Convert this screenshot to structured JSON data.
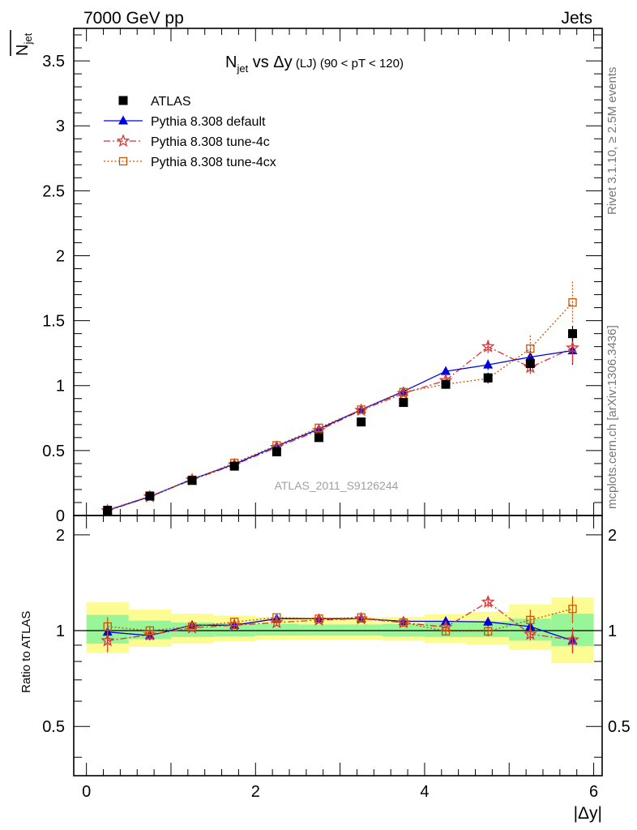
{
  "header": {
    "left": "7000 GeV pp",
    "right": "Jets"
  },
  "side_labels": {
    "rivet": "Rivet 3.1.10, ≥ 2.5M events",
    "mcplots": "mcplots.cern.ch [arXiv:1306.3436]"
  },
  "chart_data": {
    "type": "scatter",
    "title_main": "N",
    "title_sub": "jet",
    "title_rest": " vs Δy",
    "title_small": " (LJ) (90 < pT < 120)",
    "ylabel_main": "N",
    "ylabel_sub": "jet",
    "xlabel": "|Δy|",
    "ratio_ylabel": "Ratio to ATLAS",
    "watermark": "ATLAS_2011_S9126244",
    "xlim": [
      -0.15,
      6.1
    ],
    "ylim": [
      0,
      3.75
    ],
    "ratio_ylim": [
      0.35,
      2.3
    ],
    "x_ticks": [
      "0",
      "2",
      "4",
      "6"
    ],
    "y_ticks": [
      "0",
      "0.5",
      "1",
      "1.5",
      "2",
      "2.5",
      "3",
      "3.5"
    ],
    "ratio_ticks": [
      "0.5",
      "1",
      "2"
    ],
    "bins": [
      [
        0,
        0.5
      ],
      [
        0.5,
        1
      ],
      [
        1,
        1.5
      ],
      [
        1.5,
        2
      ],
      [
        2,
        2.5
      ],
      [
        2.5,
        3
      ],
      [
        3,
        3.5
      ],
      [
        3.5,
        4
      ],
      [
        4,
        4.5
      ],
      [
        4.5,
        5
      ],
      [
        5,
        5.5
      ],
      [
        5.5,
        6
      ]
    ],
    "x": [
      0.25,
      0.75,
      1.25,
      1.75,
      2.25,
      2.75,
      3.25,
      3.75,
      4.25,
      4.75,
      5.25,
      5.75
    ],
    "series": [
      {
        "name": "ATLAS",
        "color": "#000000",
        "marker": "square",
        "values": [
          0.04,
          0.15,
          0.27,
          0.38,
          0.49,
          0.6,
          0.72,
          0.87,
          1.01,
          1.06,
          1.17,
          1.4
        ],
        "errors": [
          0.004,
          0.01,
          0.01,
          0.015,
          0.02,
          0.02,
          0.02,
          0.03,
          0.035,
          0.04,
          0.05,
          0.06
        ]
      },
      {
        "name": "Pythia 8.308 default",
        "color": "#0000dd",
        "marker": "triangle",
        "values": [
          0.04,
          0.145,
          0.28,
          0.395,
          0.535,
          0.665,
          0.815,
          0.955,
          1.11,
          1.16,
          1.22,
          1.27
        ],
        "errors": [
          0.003,
          0.005,
          0.008,
          0.01,
          0.012,
          0.015,
          0.02,
          0.025,
          0.03,
          0.04,
          0.05,
          0.11
        ],
        "ratio": [
          0.99,
          0.965,
          1.04,
          1.04,
          1.09,
          1.09,
          1.09,
          1.07,
          1.07,
          1.065,
          1.03,
          0.93
        ]
      },
      {
        "name": "Pythia 8.308 tune-4c",
        "color": "#dd3333",
        "marker": "star",
        "values": [
          0.037,
          0.145,
          0.275,
          0.39,
          0.525,
          0.655,
          0.81,
          0.94,
          1.04,
          1.3,
          1.14,
          1.29
        ],
        "errors": [
          0.003,
          0.005,
          0.008,
          0.01,
          0.012,
          0.015,
          0.02,
          0.025,
          0.03,
          0.05,
          0.05,
          0.12
        ],
        "ratio": [
          0.93,
          0.97,
          1.02,
          1.04,
          1.06,
          1.08,
          1.09,
          1.06,
          1.025,
          1.23,
          0.975,
          0.935
        ]
      },
      {
        "name": "Pythia 8.308 tune-4cx",
        "color": "#cc5500",
        "marker": "open-square",
        "values": [
          0.043,
          0.15,
          0.275,
          0.405,
          0.54,
          0.675,
          0.815,
          0.95,
          1.01,
          1.055,
          1.285,
          1.64
        ],
        "errors": [
          0.003,
          0.005,
          0.008,
          0.01,
          0.012,
          0.015,
          0.02,
          0.025,
          0.03,
          0.04,
          0.1,
          0.16
        ],
        "ratio": [
          1.03,
          1.0,
          1.03,
          1.065,
          1.1,
          1.09,
          1.1,
          1.06,
          0.995,
          0.995,
          1.08,
          1.17
        ]
      }
    ],
    "ratio_bands": {
      "inner_color": "#98f598",
      "outer_color": "#fcfc92",
      "inner": [
        [
          0.91,
          1.12
        ],
        [
          0.94,
          1.075
        ],
        [
          0.955,
          1.06
        ],
        [
          0.96,
          1.055
        ],
        [
          0.965,
          1.05
        ],
        [
          0.965,
          1.045
        ],
        [
          0.965,
          1.045
        ],
        [
          0.96,
          1.05
        ],
        [
          0.955,
          1.065
        ],
        [
          0.955,
          1.07
        ],
        [
          0.93,
          1.09
        ],
        [
          0.895,
          1.13
        ]
      ],
      "outer": [
        [
          0.85,
          1.23
        ],
        [
          0.89,
          1.165
        ],
        [
          0.91,
          1.13
        ],
        [
          0.925,
          1.115
        ],
        [
          0.935,
          1.105
        ],
        [
          0.935,
          1.1
        ],
        [
          0.935,
          1.1
        ],
        [
          0.93,
          1.105
        ],
        [
          0.915,
          1.125
        ],
        [
          0.905,
          1.145
        ],
        [
          0.87,
          1.21
        ],
        [
          0.79,
          1.27
        ]
      ]
    }
  }
}
